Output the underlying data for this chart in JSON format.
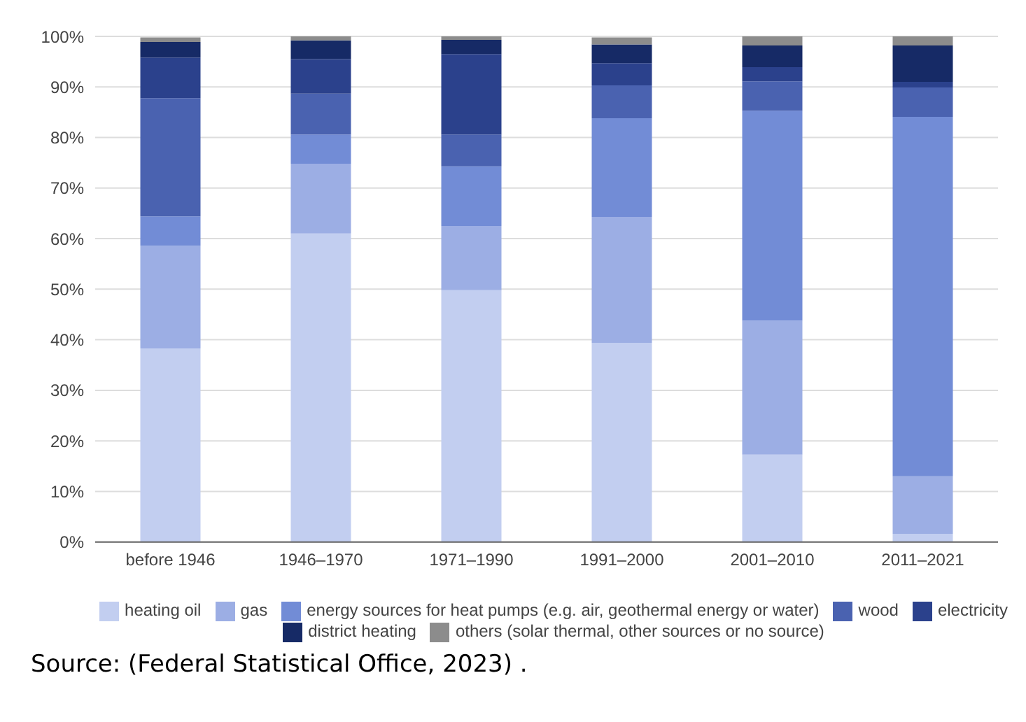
{
  "chart_data": {
    "type": "bar",
    "stacked": true,
    "categories": [
      "before 1946",
      "1946–1970",
      "1971–1990",
      "1991–2000",
      "2001–2010",
      "2011–2021"
    ],
    "series": [
      {
        "name": "heating oil",
        "color": "#c2cef0",
        "values": [
          38.3,
          61.0,
          49.8,
          39.4,
          17.3,
          1.6
        ]
      },
      {
        "name": "gas",
        "color": "#9caee4",
        "values": [
          20.3,
          13.8,
          12.7,
          24.9,
          26.5,
          11.4
        ]
      },
      {
        "name": "energy sources for heat pumps (e.g. air, geothermal energy or water)",
        "color": "#728cd6",
        "values": [
          5.8,
          5.8,
          11.8,
          19.5,
          41.5,
          71.1
        ]
      },
      {
        "name": "wood",
        "color": "#4a62b0",
        "values": [
          23.4,
          8.1,
          6.3,
          6.5,
          5.8,
          5.8
        ]
      },
      {
        "name": "electricity",
        "color": "#2b418c",
        "values": [
          8.0,
          6.8,
          15.9,
          4.4,
          2.8,
          1.1
        ]
      },
      {
        "name": "district heating",
        "color": "#162a66",
        "values": [
          3.1,
          3.7,
          2.8,
          3.7,
          4.3,
          7.2
        ]
      },
      {
        "name": "others (solar thermal, other sources or no source)",
        "color": "#8c8c8c",
        "values": [
          0.9,
          0.8,
          0.7,
          1.4,
          1.8,
          1.8
        ]
      }
    ],
    "ylim": [
      0,
      100
    ],
    "yticks": [
      {
        "value": 0,
        "label": "0%"
      },
      {
        "value": 10,
        "label": "10%"
      },
      {
        "value": 20,
        "label": "20%"
      },
      {
        "value": 30,
        "label": "30%"
      },
      {
        "value": 40,
        "label": "40%"
      },
      {
        "value": 50,
        "label": "50%"
      },
      {
        "value": 60,
        "label": "60%"
      },
      {
        "value": 70,
        "label": "70%"
      },
      {
        "value": 80,
        "label": "80%"
      },
      {
        "value": 90,
        "label": "90%"
      },
      {
        "value": 100,
        "label": "100%"
      }
    ],
    "grid": "y",
    "legend": "bottom",
    "annotations": [
      "Source: (Federal Statistical Office, 2023) ."
    ]
  }
}
